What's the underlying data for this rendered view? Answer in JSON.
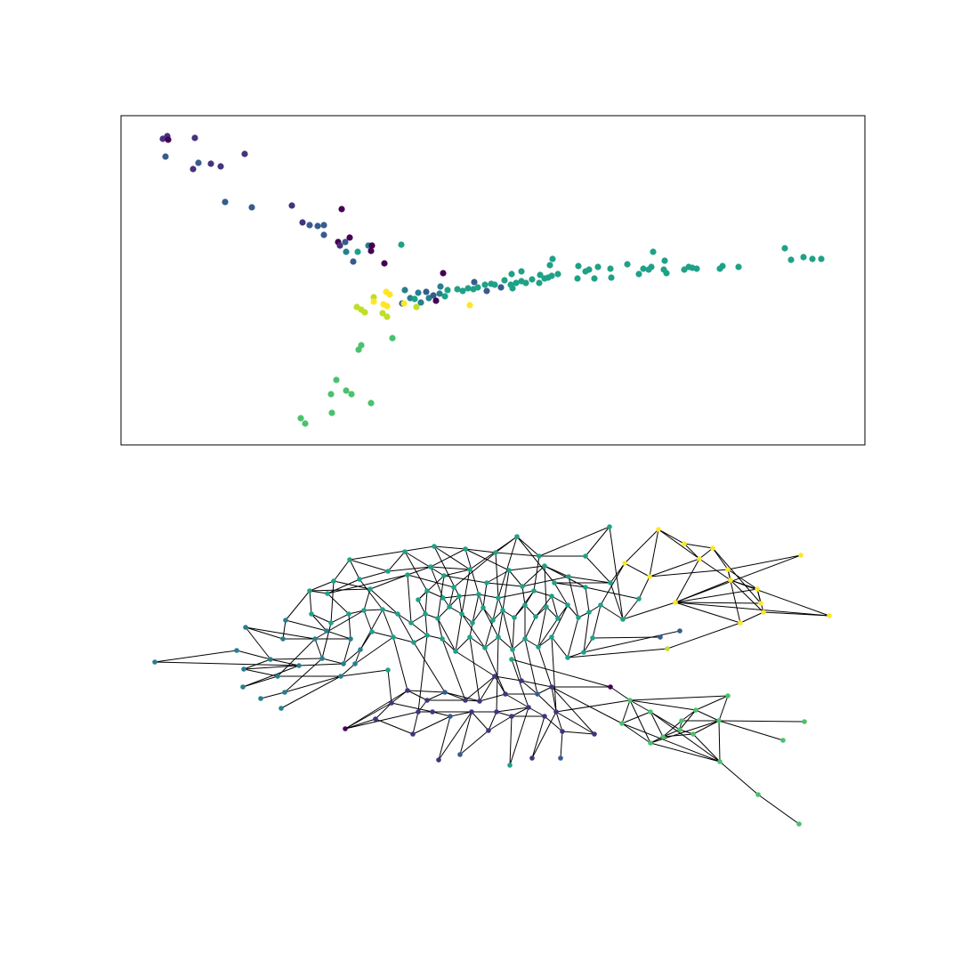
{
  "figure": {
    "panels": 2,
    "top_panel_kind": "scatter embedding with box frame, no axes ticks",
    "bottom_panel_kind": "network graph, no frame",
    "node_colormap": "viridis"
  },
  "colors": {
    "purple_dark": "#440154",
    "indigo": "#46327e",
    "blue": "#365c8d",
    "teal_blue": "#277f8e",
    "teal": "#1fa187",
    "green": "#4ac16d",
    "lime": "#7ad151",
    "yellow_green": "#bddf26",
    "yellow": "#fde725",
    "edge": "#000000",
    "frame": "#000000"
  }
}
